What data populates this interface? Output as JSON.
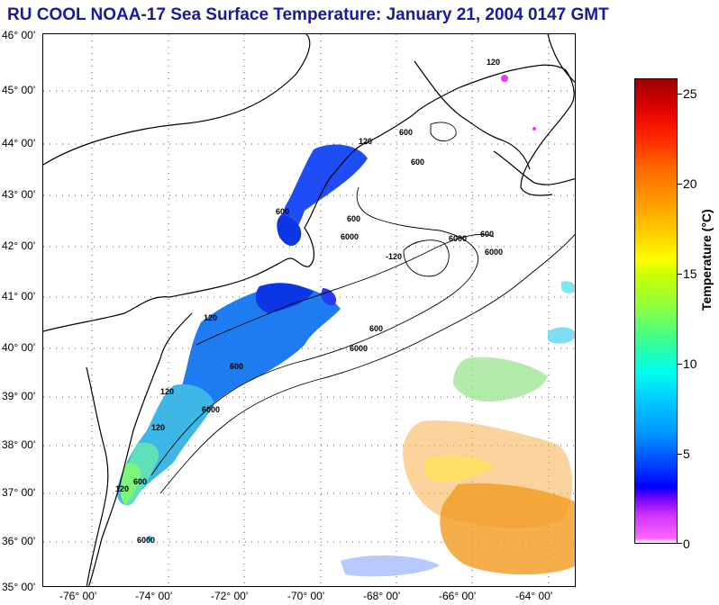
{
  "title": "RU COOL  NOAA-17  Sea Surface Temperature:  January 21, 2004 0147 GMT",
  "map": {
    "lat_labels": [
      "46° 00'",
      "45° 00'",
      "44° 00'",
      "43° 00'",
      "42° 00'",
      "41° 00'",
      "40° 00'",
      "39° 00'",
      "38° 00'",
      "37° 00'",
      "36° 00'",
      "35° 00'"
    ],
    "lon_labels": [
      "-76° 00'",
      "-74° 00'",
      "-72° 00'",
      "-70° 00'",
      "-68° 00'",
      "-66° 00'",
      "-64° 00'"
    ],
    "isobath_labels": [
      "120",
      "120",
      "600",
      "600",
      "600",
      "6000",
      "6000",
      "-120",
      "120",
      "600",
      "6000",
      "600",
      "6000",
      "120",
      "600",
      "120",
      "600",
      "6000",
      "6000",
      "120",
      "600"
    ]
  },
  "colorbar": {
    "label": "Temperature (°C)",
    "ticks": [
      "25",
      "20",
      "15",
      "10",
      "5",
      "0"
    ],
    "range": [
      0,
      26
    ]
  }
}
